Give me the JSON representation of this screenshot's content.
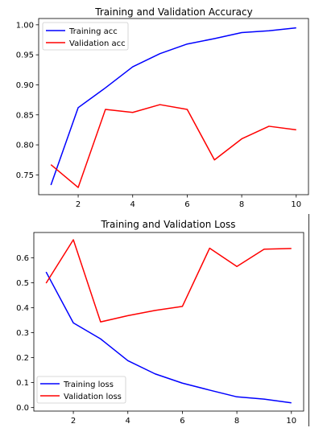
{
  "chart_data": [
    {
      "type": "line",
      "title": "Training and Validation Accuracy",
      "xlabel": "",
      "ylabel": "",
      "xlim": [
        0.55,
        10.45
      ],
      "ylim": [
        0.717,
        1.0105
      ],
      "xticks": [
        2,
        4,
        6,
        8,
        10
      ],
      "yticks": [
        0.75,
        0.8,
        0.85,
        0.9,
        0.95,
        1.0
      ],
      "ytick_labels": [
        "0.75",
        "0.80",
        "0.85",
        "0.90",
        "0.95",
        "1.00"
      ],
      "grid": false,
      "legend_position": "upper-left",
      "x": [
        1,
        2,
        3,
        4,
        5,
        6,
        7,
        8,
        9,
        10
      ],
      "series": [
        {
          "name": "Training acc",
          "color": "#0000ff",
          "values": [
            0.733,
            0.862,
            0.895,
            0.93,
            0.952,
            0.968,
            0.977,
            0.987,
            0.99,
            0.995
          ]
        },
        {
          "name": "Validation acc",
          "color": "#ff0000",
          "values": [
            0.767,
            0.729,
            0.859,
            0.854,
            0.867,
            0.859,
            0.775,
            0.81,
            0.831,
            0.825
          ]
        }
      ]
    },
    {
      "type": "line",
      "title": "Training and Validation Loss",
      "xlabel": "",
      "ylabel": "",
      "xlim": [
        0.55,
        10.45
      ],
      "ylim": [
        -0.014,
        0.701
      ],
      "xticks": [
        2,
        4,
        6,
        8,
        10
      ],
      "yticks": [
        0.0,
        0.1,
        0.2,
        0.3,
        0.4,
        0.5,
        0.6
      ],
      "ytick_labels": [
        "0.0",
        "0.1",
        "0.2",
        "0.3",
        "0.4",
        "0.5",
        "0.6"
      ],
      "grid": false,
      "legend_position": "lower-left",
      "x": [
        1,
        2,
        3,
        4,
        5,
        6,
        7,
        8,
        9,
        10
      ],
      "series": [
        {
          "name": "Training loss",
          "color": "#0000ff",
          "values": [
            0.543,
            0.339,
            0.275,
            0.188,
            0.135,
            0.098,
            0.07,
            0.043,
            0.034,
            0.019
          ]
        },
        {
          "name": "Validation loss",
          "color": "#ff0000",
          "values": [
            0.498,
            0.672,
            0.343,
            0.368,
            0.389,
            0.405,
            0.638,
            0.565,
            0.634,
            0.637
          ]
        }
      ]
    }
  ]
}
